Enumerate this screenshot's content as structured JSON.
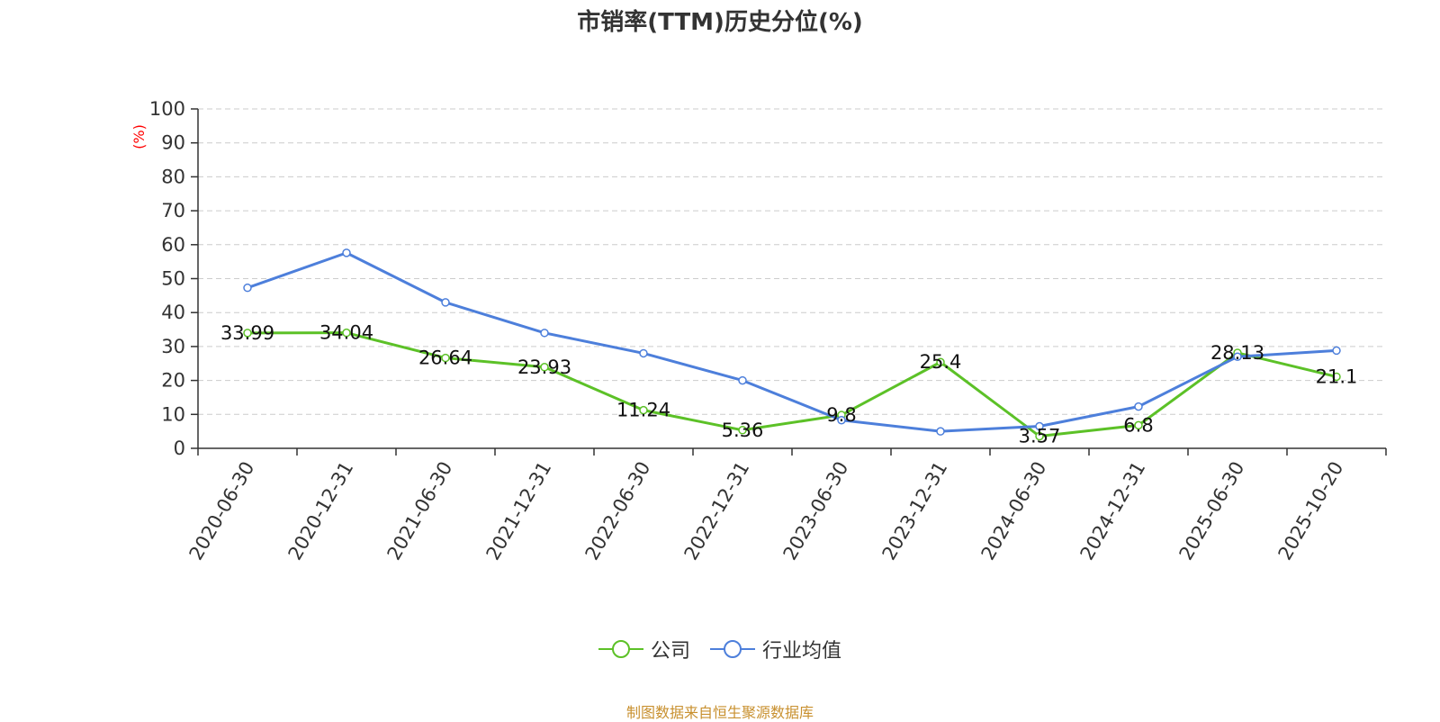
{
  "chart_data": {
    "type": "line",
    "title": "市销率(TTM)历史分位(%)",
    "ylabel": "(%)",
    "xlabel": "",
    "ylim": [
      0,
      100
    ],
    "yticks": [
      0,
      10,
      20,
      30,
      40,
      50,
      60,
      70,
      80,
      90,
      100
    ],
    "grid": true,
    "legend_position": "bottom",
    "categories": [
      "2020-06-30",
      "2020-12-31",
      "2021-06-30",
      "2021-12-31",
      "2022-06-30",
      "2022-12-31",
      "2023-06-30",
      "2023-12-31",
      "2024-06-30",
      "2024-12-31",
      "2025-06-30",
      "2025-10-20"
    ],
    "series": [
      {
        "name": "公司",
        "color": "#5cc127",
        "values": [
          33.99,
          34.04,
          26.64,
          23.93,
          11.24,
          5.36,
          9.8,
          25.4,
          3.57,
          6.8,
          28.13,
          21.1
        ],
        "labels": [
          "33.99",
          "34.04",
          "26.64",
          "23.93",
          "11.24",
          "5.36",
          "9.8",
          "25.4",
          "3.57",
          "6.8",
          "28.13",
          "21.1"
        ]
      },
      {
        "name": "行业均值",
        "color": "#4d7fdb",
        "values": [
          47.3,
          57.6,
          43.0,
          34.0,
          28.0,
          20.0,
          8.3,
          5.0,
          6.5,
          12.3,
          27.0,
          28.8
        ]
      }
    ]
  },
  "colors": {
    "ylabel": "#ff0000",
    "axis": "#333333",
    "grid": "#cccccc",
    "source": "#c8902f"
  },
  "footer": {
    "source": "制图数据来自恒生聚源数据库"
  }
}
